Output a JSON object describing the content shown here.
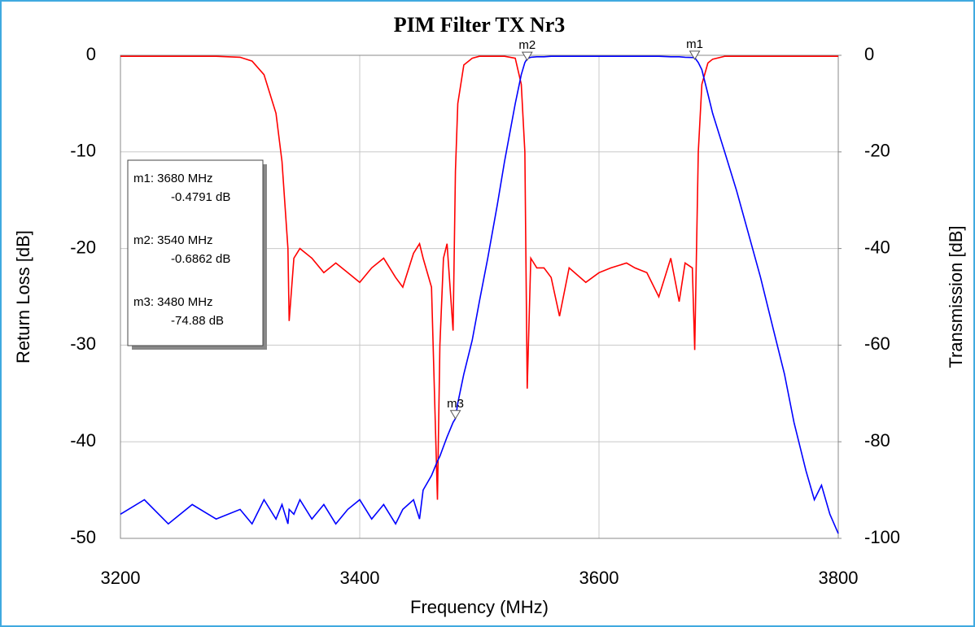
{
  "chart_data": {
    "type": "line",
    "title": "PIM Filter TX Nr3",
    "xlabel": "Frequency (MHz)",
    "ylabel": "Return Loss [dB]",
    "y2label": "Transmission [dB]",
    "xlim": [
      3200,
      3800
    ],
    "xticks": [
      3200,
      3400,
      3600,
      3800
    ],
    "ylim": [
      -50,
      0
    ],
    "yticks": [
      -50,
      -40,
      -30,
      -20,
      -10,
      0
    ],
    "y2lim": [
      -100,
      0
    ],
    "y2ticks": [
      -100,
      -80,
      -60,
      -40,
      -20,
      0
    ],
    "grid": true,
    "x": [
      3200,
      3220,
      3240,
      3260,
      3280,
      3300,
      3310,
      3320,
      3330,
      3335,
      3340,
      3341,
      3345,
      3350,
      3360,
      3370,
      3380,
      3390,
      3400,
      3410,
      3420,
      3430,
      3436,
      3445,
      3450,
      3453,
      3460,
      3465,
      3467,
      3470,
      3473,
      3478,
      3480,
      3482,
      3487,
      3494,
      3500,
      3507,
      3515,
      3521,
      3530,
      3535,
      3538,
      3540,
      3543,
      3548,
      3554,
      3560,
      3567,
      3575,
      3589,
      3600,
      3610,
      3623,
      3630,
      3640,
      3650,
      3660,
      3667,
      3672,
      3678,
      3680,
      3683,
      3686,
      3691,
      3695,
      3705,
      3715,
      3725,
      3735,
      3746,
      3755,
      3763,
      3773,
      3780,
      3786,
      3793,
      3800
    ],
    "series": [
      {
        "color": "#ff0000",
        "axis": "y",
        "values": [
          -0.1,
          -0.1,
          -0.1,
          -0.1,
          -0.1,
          -0.2,
          -0.6,
          -2,
          -6,
          -11,
          -20,
          -27.5,
          -21,
          -20,
          -21,
          -22.5,
          -21.5,
          -22.5,
          -23.5,
          -22,
          -21,
          -23,
          -24,
          -20.5,
          -19.5,
          -21,
          -24,
          -46,
          -30,
          -21,
          -19.5,
          -28.5,
          -12,
          -5,
          -1,
          -0.3,
          -0.1,
          -0.1,
          -0.1,
          -0.1,
          -0.3,
          -3,
          -10,
          -34.5,
          -21,
          -22,
          -22,
          -23,
          -27,
          -22,
          -23.5,
          -22.5,
          -22,
          -21.5,
          -22,
          -22.5,
          -25,
          -21,
          -25.5,
          -21.5,
          -22,
          -30.5,
          -10,
          -3,
          -0.8,
          -0.4,
          -0.1,
          -0.1,
          -0.1,
          -0.1,
          -0.1,
          -0.1,
          -0.1,
          -0.1,
          -0.1,
          -0.1,
          -0.1,
          -0.1
        ]
      },
      {
        "color": "#0000ff",
        "axis": "y2",
        "values": [
          -95,
          -92,
          -97,
          -93,
          -96,
          -94,
          -97,
          -92,
          -96,
          -93,
          -97,
          -94,
          -95,
          -92,
          -96,
          -93,
          -97,
          -94,
          -92,
          -96,
          -93,
          -97,
          -94,
          -92,
          -96,
          -90,
          -87,
          -84,
          -83,
          -81,
          -79,
          -76,
          -75.2,
          -72,
          -66,
          -59,
          -51,
          -42,
          -31,
          -22,
          -10,
          -4,
          -1.5,
          -0.69,
          -0.4,
          -0.3,
          -0.3,
          -0.2,
          -0.2,
          -0.2,
          -0.2,
          -0.2,
          -0.2,
          -0.2,
          -0.2,
          -0.2,
          -0.2,
          -0.3,
          -0.3,
          -0.4,
          -0.45,
          -0.48,
          -1.5,
          -3,
          -8,
          -12,
          -20,
          -28,
          -37,
          -46,
          -57,
          -66,
          -76,
          -86,
          -92,
          -89,
          -95,
          -99
        ]
      }
    ],
    "markers": [
      {
        "name": "m1",
        "x": 3680,
        "value": -0.4791,
        "text": "m1: 3680 MHz",
        "value_label": "-0.4791 dB"
      },
      {
        "name": "m2",
        "x": 3540,
        "value": -0.6862,
        "text": "m2: 3540 MHz",
        "value_label": "-0.6862 dB"
      },
      {
        "name": "m3",
        "x": 3480,
        "value": -74.88,
        "text": "m3: 3480 MHz",
        "value_label": "-74.88 dB"
      }
    ]
  }
}
